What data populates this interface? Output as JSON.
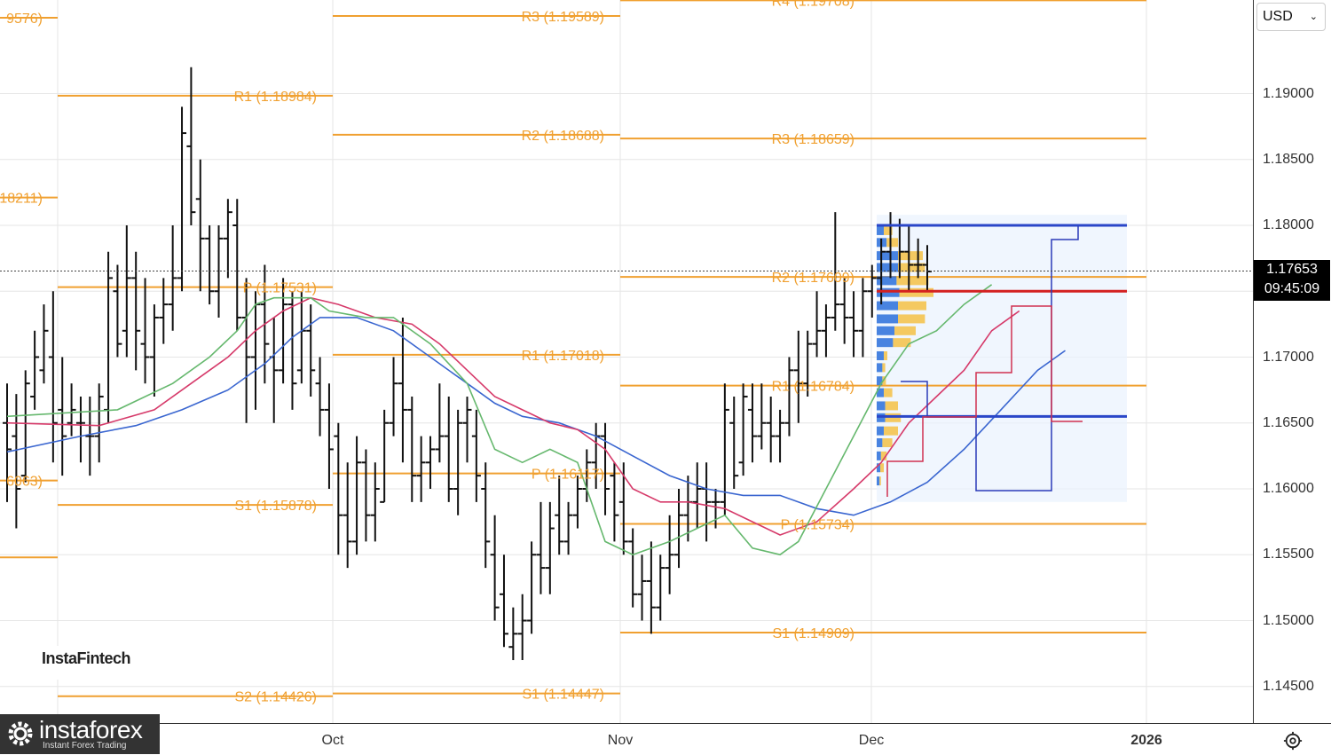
{
  "currency_selector": {
    "label": "USD",
    "chevron_icon": "chevron-down-icon"
  },
  "price_badge": {
    "price": "1.17653",
    "countdown": "09:45:09"
  },
  "watermark_label": "InstaFintech",
  "brand": {
    "name": "instaforex",
    "tagline": "Instant Forex Trading",
    "logo_icon": "gear-logo-icon"
  },
  "settings_icon": "settings-gear-icon",
  "colors": {
    "pivot": "#f0a030",
    "sma_fast": "#66b86e",
    "sma_mid": "#d63a6a",
    "sma_slow": "#3a66d0",
    "vp_blue": "#2a6fdb",
    "vp_orange": "#f5c145",
    "vp_box_line": "#2a46c8",
    "poc": "#d42020"
  },
  "chart_data": {
    "type": "ohlc",
    "x_axis": {
      "ticks": [
        "Oct",
        "Nov",
        "Dec",
        "2026"
      ]
    },
    "y_axis": {
      "ticks": [
        "1.14500",
        "1.15000",
        "1.15500",
        "1.16000",
        "1.16500",
        "1.17000",
        "1.17500",
        "1.18000",
        "1.18500",
        "1.19000"
      ],
      "range": [
        1.1415,
        1.1985
      ]
    },
    "current_price": 1.17653,
    "pivot_levels": [
      {
        "label": "9576)",
        "period": "pre-sep",
        "value": 1.19576
      },
      {
        "label": "18211)",
        "period": "pre-sep",
        "value": 1.18211
      },
      {
        "label": "6063)",
        "period": "pre-sep",
        "value": 1.16063
      },
      {
        "label": "",
        "period": "pre-sep",
        "value": 1.1548
      },
      {
        "label": "R1 (1.18984)",
        "period": "sep",
        "value": 1.18984
      },
      {
        "label": "P (1.17531)",
        "period": "sep",
        "value": 1.17531
      },
      {
        "label": "S1 (1.15878)",
        "period": "sep",
        "value": 1.15878
      },
      {
        "label": "S2 (1.14426)",
        "period": "sep",
        "value": 1.14426
      },
      {
        "label": "R3 (1.19589)",
        "period": "oct",
        "value": 1.19589
      },
      {
        "label": "R2 (1.18688)",
        "period": "oct",
        "value": 1.18688
      },
      {
        "label": "R1 (1.17018)",
        "period": "oct",
        "value": 1.17018
      },
      {
        "label": "P (1.16117)",
        "period": "oct",
        "value": 1.16117
      },
      {
        "label": "S1 (1.14447)",
        "period": "oct",
        "value": 1.14447
      },
      {
        "label": "R4 (1.19708)",
        "period": "nov",
        "value": 1.19708
      },
      {
        "label": "R3 (1.18659)",
        "period": "nov",
        "value": 1.18659
      },
      {
        "label": "R2 (1.17609)",
        "period": "nov",
        "value": 1.17609
      },
      {
        "label": "R1 (1.16784)",
        "period": "nov",
        "value": 1.16784
      },
      {
        "label": "P (1.15734)",
        "period": "nov",
        "value": 1.15734
      },
      {
        "label": "S1 (1.14909)",
        "period": "nov",
        "value": 1.14909
      }
    ],
    "volume_profile": {
      "range_high": 1.18,
      "range_low": 1.1655,
      "poc": 1.175,
      "rows": [
        {
          "price": 1.1796,
          "buy": 0.1,
          "sell": 0.12
        },
        {
          "price": 1.1787,
          "buy": 0.14,
          "sell": 0.16
        },
        {
          "price": 1.1777,
          "buy": 0.3,
          "sell": 0.35
        },
        {
          "price": 1.1768,
          "buy": 0.3,
          "sell": 0.38
        },
        {
          "price": 1.1758,
          "buy": 0.28,
          "sell": 0.45
        },
        {
          "price": 1.1749,
          "buy": 0.32,
          "sell": 0.48
        },
        {
          "price": 1.1739,
          "buy": 0.3,
          "sell": 0.4
        },
        {
          "price": 1.1729,
          "buy": 0.3,
          "sell": 0.38
        },
        {
          "price": 1.172,
          "buy": 0.25,
          "sell": 0.3
        },
        {
          "price": 1.1711,
          "buy": 0.23,
          "sell": 0.25
        },
        {
          "price": 1.1701,
          "buy": 0.1,
          "sell": 0.05
        },
        {
          "price": 1.1692,
          "buy": 0.08,
          "sell": 0.04
        },
        {
          "price": 1.1682,
          "buy": 0.08,
          "sell": 0.05
        },
        {
          "price": 1.1673,
          "buy": 0.1,
          "sell": 0.12
        },
        {
          "price": 1.1663,
          "buy": 0.12,
          "sell": 0.18
        },
        {
          "price": 1.1654,
          "buy": 0.12,
          "sell": 0.22
        },
        {
          "price": 1.1644,
          "buy": 0.1,
          "sell": 0.2
        },
        {
          "price": 1.1635,
          "buy": 0.08,
          "sell": 0.14
        },
        {
          "price": 1.1625,
          "buy": 0.06,
          "sell": 0.08
        },
        {
          "price": 1.1616,
          "buy": 0.05,
          "sell": 0.05
        },
        {
          "price": 1.1606,
          "buy": 0.04,
          "sell": 0.02
        }
      ]
    },
    "bars": [
      [
        1.165,
        1.168,
        1.159,
        1.163
      ],
      [
        1.164,
        1.1672,
        1.157,
        1.16
      ],
      [
        1.161,
        1.169,
        1.1605,
        1.168
      ],
      [
        1.167,
        1.172,
        1.166,
        1.17
      ],
      [
        1.169,
        1.174,
        1.168,
        1.172
      ],
      [
        1.17,
        1.175,
        1.162,
        1.165
      ],
      [
        1.166,
        1.17,
        1.161,
        1.164
      ],
      [
        1.165,
        1.168,
        1.164,
        1.166
      ],
      [
        1.165,
        1.167,
        1.162,
        1.165
      ],
      [
        1.164,
        1.167,
        1.161,
        1.164
      ],
      [
        1.164,
        1.168,
        1.162,
        1.167
      ],
      [
        1.166,
        1.178,
        1.165,
        1.176
      ],
      [
        1.175,
        1.177,
        1.17,
        1.171
      ],
      [
        1.172,
        1.18,
        1.17,
        1.176
      ],
      [
        1.176,
        1.178,
        1.169,
        1.172
      ],
      [
        1.171,
        1.176,
        1.168,
        1.17
      ],
      [
        1.17,
        1.174,
        1.167,
        1.173
      ],
      [
        1.173,
        1.176,
        1.171,
        1.174
      ],
      [
        1.174,
        1.18,
        1.172,
        1.176
      ],
      [
        1.176,
        1.189,
        1.175,
        1.187
      ],
      [
        1.186,
        1.192,
        1.18,
        1.181
      ],
      [
        1.182,
        1.185,
        1.175,
        1.179
      ],
      [
        1.179,
        1.18,
        1.174,
        1.175
      ],
      [
        1.175,
        1.18,
        1.173,
        1.179
      ],
      [
        1.179,
        1.182,
        1.176,
        1.181
      ],
      [
        1.18,
        1.182,
        1.172,
        1.173
      ],
      [
        1.173,
        1.176,
        1.165,
        1.17
      ],
      [
        1.17,
        1.175,
        1.166,
        1.174
      ],
      [
        1.174,
        1.177,
        1.168,
        1.171
      ],
      [
        1.17,
        1.173,
        1.165,
        1.169
      ],
      [
        1.169,
        1.176,
        1.168,
        1.174
      ],
      [
        1.174,
        1.175,
        1.166,
        1.168
      ],
      [
        1.169,
        1.175,
        1.168,
        1.172
      ],
      [
        1.172,
        1.174,
        1.167,
        1.169
      ],
      [
        1.168,
        1.17,
        1.164,
        1.166
      ],
      [
        1.166,
        1.168,
        1.16,
        1.163
      ],
      [
        1.164,
        1.165,
        1.155,
        1.158
      ],
      [
        1.158,
        1.162,
        1.154,
        1.156
      ],
      [
        1.156,
        1.164,
        1.155,
        1.162
      ],
      [
        1.162,
        1.163,
        1.156,
        1.158
      ],
      [
        1.158,
        1.162,
        1.156,
        1.16
      ],
      [
        1.159,
        1.166,
        1.159,
        1.165
      ],
      [
        1.165,
        1.17,
        1.164,
        1.168
      ],
      [
        1.168,
        1.173,
        1.162,
        1.166
      ],
      [
        1.166,
        1.167,
        1.159,
        1.161
      ],
      [
        1.161,
        1.164,
        1.159,
        1.162
      ],
      [
        1.162,
        1.164,
        1.16,
        1.163
      ],
      [
        1.163,
        1.168,
        1.162,
        1.164
      ],
      [
        1.164,
        1.167,
        1.159,
        1.16
      ],
      [
        1.16,
        1.166,
        1.158,
        1.165
      ],
      [
        1.165,
        1.167,
        1.162,
        1.166
      ],
      [
        1.164,
        1.166,
        1.159,
        1.161
      ],
      [
        1.16,
        1.162,
        1.154,
        1.156
      ],
      [
        1.155,
        1.158,
        1.15,
        1.151
      ],
      [
        1.152,
        1.155,
        1.148,
        1.149
      ],
      [
        1.148,
        1.151,
        1.147,
        1.149
      ],
      [
        1.149,
        1.152,
        1.147,
        1.15
      ],
      [
        1.15,
        1.156,
        1.149,
        1.155
      ],
      [
        1.155,
        1.159,
        1.152,
        1.154
      ],
      [
        1.154,
        1.159,
        1.152,
        1.157
      ],
      [
        1.158,
        1.161,
        1.155,
        1.156
      ],
      [
        1.156,
        1.159,
        1.155,
        1.158
      ],
      [
        1.158,
        1.161,
        1.157,
        1.16
      ],
      [
        1.16,
        1.163,
        1.159,
        1.162
      ],
      [
        1.162,
        1.165,
        1.16,
        1.164
      ],
      [
        1.164,
        1.165,
        1.158,
        1.16
      ],
      [
        1.161,
        1.162,
        1.156,
        1.158
      ],
      [
        1.159,
        1.162,
        1.155,
        1.156
      ],
      [
        1.156,
        1.157,
        1.151,
        1.152
      ],
      [
        1.152,
        1.155,
        1.15,
        1.153
      ],
      [
        1.153,
        1.156,
        1.149,
        1.151
      ],
      [
        1.151,
        1.155,
        1.15,
        1.154
      ],
      [
        1.154,
        1.158,
        1.152,
        1.155
      ],
      [
        1.155,
        1.16,
        1.154,
        1.158
      ],
      [
        1.158,
        1.161,
        1.156,
        1.159
      ],
      [
        1.159,
        1.162,
        1.157,
        1.16
      ],
      [
        1.16,
        1.162,
        1.156,
        1.159
      ],
      [
        1.159,
        1.16,
        1.157,
        1.159
      ],
      [
        1.159,
        1.168,
        1.158,
        1.166
      ],
      [
        1.165,
        1.167,
        1.16,
        1.161
      ],
      [
        1.162,
        1.168,
        1.161,
        1.167
      ],
      [
        1.166,
        1.168,
        1.162,
        1.164
      ],
      [
        1.164,
        1.168,
        1.163,
        1.165
      ],
      [
        1.165,
        1.167,
        1.162,
        1.164
      ],
      [
        1.164,
        1.166,
        1.162,
        1.165
      ],
      [
        1.165,
        1.17,
        1.164,
        1.169
      ],
      [
        1.169,
        1.172,
        1.165,
        1.168
      ],
      [
        1.168,
        1.172,
        1.167,
        1.171
      ],
      [
        1.171,
        1.175,
        1.17,
        1.172
      ],
      [
        1.172,
        1.174,
        1.17,
        1.173
      ],
      [
        1.173,
        1.181,
        1.172,
        1.174
      ],
      [
        1.174,
        1.176,
        1.171,
        1.173
      ],
      [
        1.173,
        1.175,
        1.17,
        1.172
      ],
      [
        1.172,
        1.176,
        1.17,
        1.175
      ],
      [
        1.175,
        1.177,
        1.173,
        1.176
      ],
      [
        1.176,
        1.179,
        1.174,
        1.178
      ],
      [
        1.178,
        1.181,
        1.176,
        1.18
      ],
      [
        1.18,
        1.1805,
        1.176,
        1.178
      ],
      [
        1.178,
        1.18,
        1.175,
        1.177
      ],
      [
        1.177,
        1.179,
        1.176,
        1.177
      ],
      [
        1.177,
        1.1785,
        1.175,
        1.1765
      ]
    ],
    "sma_fast": [
      [
        0,
        1.1655
      ],
      [
        12,
        1.166
      ],
      [
        18,
        1.168
      ],
      [
        22,
        1.17
      ],
      [
        25,
        1.172
      ],
      [
        27,
        1.174
      ],
      [
        29,
        1.1745
      ],
      [
        31,
        1.1745
      ],
      [
        33,
        1.1745
      ],
      [
        35,
        1.1735
      ],
      [
        39,
        1.173
      ],
      [
        42,
        1.173
      ],
      [
        46,
        1.171
      ],
      [
        50,
        1.168
      ],
      [
        53,
        1.163
      ],
      [
        56,
        1.162
      ],
      [
        59,
        1.163
      ],
      [
        62,
        1.162
      ],
      [
        65,
        1.156
      ],
      [
        68,
        1.155
      ],
      [
        72,
        1.156
      ],
      [
        75,
        1.157
      ],
      [
        78,
        1.158
      ],
      [
        81,
        1.1555
      ],
      [
        84,
        1.155
      ],
      [
        86,
        1.156
      ],
      [
        89,
        1.16
      ],
      [
        92,
        1.164
      ],
      [
        95,
        1.168
      ],
      [
        98,
        1.171
      ],
      [
        101,
        1.172
      ],
      [
        104,
        1.174
      ],
      [
        107,
        1.1755
      ]
    ],
    "sma_mid": [
      [
        0,
        1.165
      ],
      [
        10,
        1.1648
      ],
      [
        16,
        1.166
      ],
      [
        20,
        1.168
      ],
      [
        24,
        1.17
      ],
      [
        27,
        1.172
      ],
      [
        30,
        1.1735
      ],
      [
        33,
        1.1745
      ],
      [
        36,
        1.174
      ],
      [
        40,
        1.173
      ],
      [
        44,
        1.1725
      ],
      [
        47,
        1.171
      ],
      [
        50,
        1.169
      ],
      [
        53,
        1.167
      ],
      [
        56,
        1.166
      ],
      [
        59,
        1.165
      ],
      [
        62,
        1.1645
      ],
      [
        65,
        1.163
      ],
      [
        68,
        1.16
      ],
      [
        71,
        1.159
      ],
      [
        74,
        1.159
      ],
      [
        78,
        1.1585
      ],
      [
        81,
        1.1575
      ],
      [
        84,
        1.1565
      ],
      [
        88,
        1.1575
      ],
      [
        92,
        1.16
      ],
      [
        95,
        1.162
      ],
      [
        98,
        1.165
      ],
      [
        101,
        1.167
      ],
      [
        104,
        1.169
      ],
      [
        107,
        1.172
      ],
      [
        110,
        1.1735
      ]
    ],
    "sma_slow": [
      [
        0,
        1.1628
      ],
      [
        8,
        1.164
      ],
      [
        14,
        1.1648
      ],
      [
        19,
        1.166
      ],
      [
        24,
        1.1675
      ],
      [
        28,
        1.1695
      ],
      [
        31,
        1.1715
      ],
      [
        34,
        1.173
      ],
      [
        38,
        1.173
      ],
      [
        42,
        1.172
      ],
      [
        46,
        1.17
      ],
      [
        50,
        1.168
      ],
      [
        53,
        1.1665
      ],
      [
        56,
        1.1655
      ],
      [
        60,
        1.165
      ],
      [
        64,
        1.164
      ],
      [
        68,
        1.1625
      ],
      [
        72,
        1.161
      ],
      [
        76,
        1.16
      ],
      [
        80,
        1.1595
      ],
      [
        84,
        1.1595
      ],
      [
        88,
        1.1585
      ],
      [
        92,
        1.158
      ],
      [
        96,
        1.159
      ],
      [
        100,
        1.1605
      ],
      [
        104,
        1.163
      ],
      [
        108,
        1.166
      ],
      [
        112,
        1.169
      ],
      [
        115,
        1.1705
      ]
    ]
  }
}
